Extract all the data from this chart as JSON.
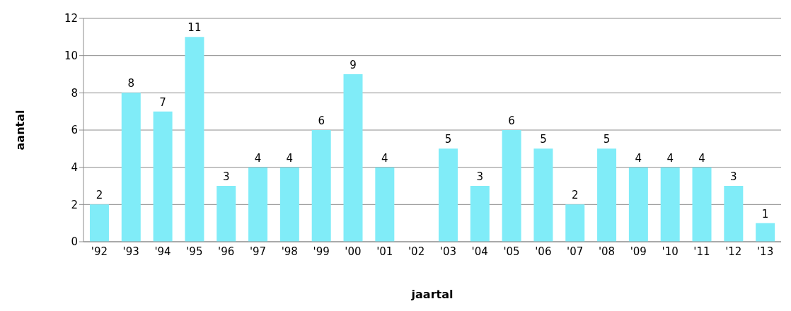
{
  "chart_data": {
    "type": "bar",
    "xlabel": "jaartal",
    "ylabel": "aantal",
    "categories": [
      "'92",
      "'93",
      "'94",
      "'95",
      "'96",
      "'97",
      "'98",
      "'99",
      "'00",
      "'01",
      "'02",
      "'03",
      "'04",
      "'05",
      "'06",
      "'07",
      "'08",
      "'09",
      "'10",
      "'11",
      "'12",
      "'13"
    ],
    "values": [
      2,
      8,
      7,
      11,
      3,
      4,
      4,
      6,
      9,
      4,
      null,
      5,
      3,
      6,
      5,
      2,
      5,
      4,
      4,
      4,
      3,
      1
    ],
    "color": "#80ecf8",
    "ylim": [
      0,
      12
    ],
    "yticks": [
      0,
      2,
      4,
      6,
      8,
      10,
      12
    ],
    "grid": "y",
    "data_labels": true
  }
}
